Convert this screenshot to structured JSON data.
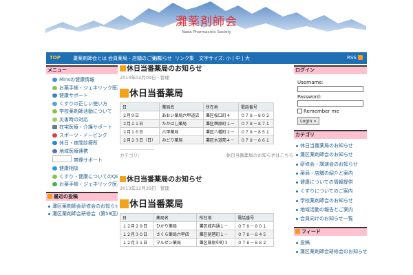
{
  "site": {
    "title": "灘薬剤師会",
    "subtitle": "Nada Pharmacists Society"
  },
  "nav": {
    "top": "TOP",
    "items": [
      "灘薬剤師会とは",
      "会員薬局・店舗のご案内",
      "お知らせ",
      "リンク集",
      "文字サイズ: 小 | 中 | 大"
    ],
    "rss": "RSS"
  },
  "left": {
    "menu_title": "メニュー",
    "menu_items": [
      "Minsの健康情報",
      "お薬手帳・ジェネリック医薬品",
      "健康サポート",
      "くすりの正しい使い方",
      "学校薬剤師活動について",
      "災害時の対応",
      "在宅医療・介護サポート",
      "スポーツ・ドーピング",
      "休日・夜間診療所",
      "地域医療連携",
      "",
      "禁煙サポート",
      "健康相談",
      "くすり・健康についてのQ&A"
    ],
    "recent_title": "最近の投稿",
    "recent_items": [
      "灘区薬剤師会研修会のお知らせについて",
      "灘区薬剤師会研修会（第59回）の"
    ]
  },
  "posts": [
    {
      "title": "休日当番薬局のお知らせ",
      "date": "2014年02月09日",
      "author": "管理",
      "heading": "休日当番薬局",
      "columns": [
        "日",
        "薬局名",
        "所在地",
        "電話番号"
      ],
      "rows": [
        [
          "２月９日",
          "あおい薬局六甲道店",
          "灘区桜口町４",
          "０７８－８０２"
        ],
        [
          "２月１１日",
          "たかはし薬局",
          "灘区稗原町１－",
          "０７８－８７１"
        ],
        [
          "２月１６日",
          "六甲薬局",
          "灘区八幡町２－",
          "０７８－８５１"
        ],
        [
          "２月２３日（日）",
          "みどり薬局",
          "灘区水道筋４－",
          "０７８－８６１"
        ]
      ],
      "footer_left": "カテゴリ：",
      "footer_right": "休日当番薬局のお知らせはこちら"
    },
    {
      "title": "休日当番薬局のお知らせ",
      "date": "2013年12月29日",
      "author": "管理",
      "heading": "休日当番薬局",
      "columns": [
        "日",
        "薬局名",
        "所在地",
        "電話番号"
      ],
      "rows": [
        [
          "１２月２９日",
          "ひかり薬局",
          "灘区城内通１－",
          "０７８－８０１"
        ],
        [
          "１２月３０日",
          "さくら薬局六甲店",
          "灘区琵琶町１－",
          "０７８－８４５"
        ],
        [
          "１２月３１日",
          "マルゼン薬局",
          "灘区篠原中町３",
          "０７８－８８２"
        ]
      ]
    }
  ],
  "right": {
    "login_title": "ログイン",
    "username_label": "Username:",
    "password_label": "Password:",
    "remember_label": "Remember me",
    "login_button": "Login »",
    "cat_title": "カテゴリ",
    "cat_items": [
      "休日当番薬局のお知らせ",
      "灘区薬剤師会のお知らせ",
      "研修会・講演会のお知らせ",
      "薬局・店舗の紹介と案内",
      "健康についての情報提供",
      "くすりについてのご案内",
      "学校薬剤師会のお知らせ",
      "地域活動の報告とご案内",
      "会員向けのお知らせ一覧"
    ],
    "feed_title": "フィード",
    "feed_items": [
      "投稿",
      "灘区薬剤師会研修会のお知らせについて"
    ]
  },
  "colors": {
    "nav_bg": "#1f6fb5",
    "sidebar_head": "#ffc0d0",
    "accent": "#f3a21c",
    "title_red": "#e0303a"
  }
}
